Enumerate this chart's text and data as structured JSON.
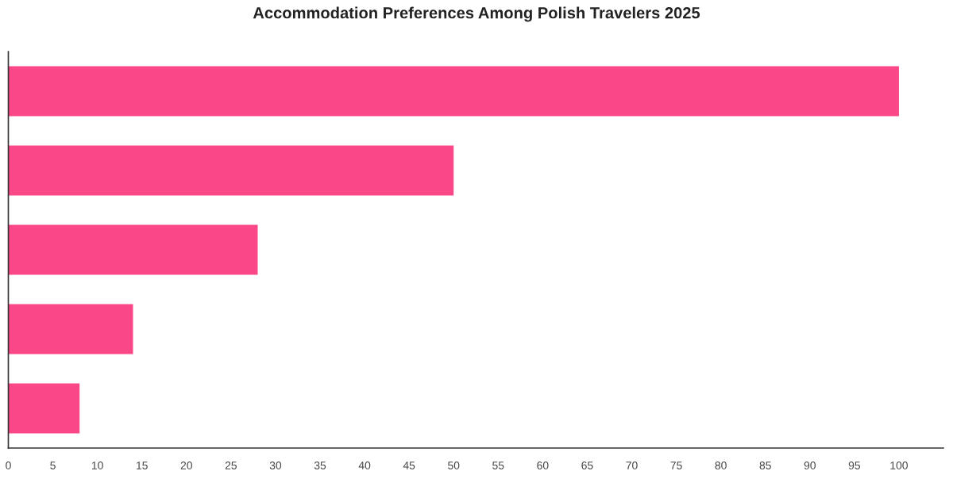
{
  "chart_data": {
    "type": "bar",
    "orientation": "horizontal",
    "title": "Accommodation Preferences Among Polish Travelers 2025",
    "categories": [
      null,
      null,
      null,
      null,
      null
    ],
    "values": [
      100,
      50,
      28,
      14,
      8
    ],
    "color": "#f94787",
    "xlim": [
      0,
      105
    ],
    "xticks": [
      0,
      5,
      10,
      15,
      20,
      25,
      30,
      35,
      40,
      45,
      50,
      55,
      60,
      65,
      70,
      75,
      80,
      85,
      90,
      95,
      100
    ],
    "grid": false,
    "legend": false
  }
}
